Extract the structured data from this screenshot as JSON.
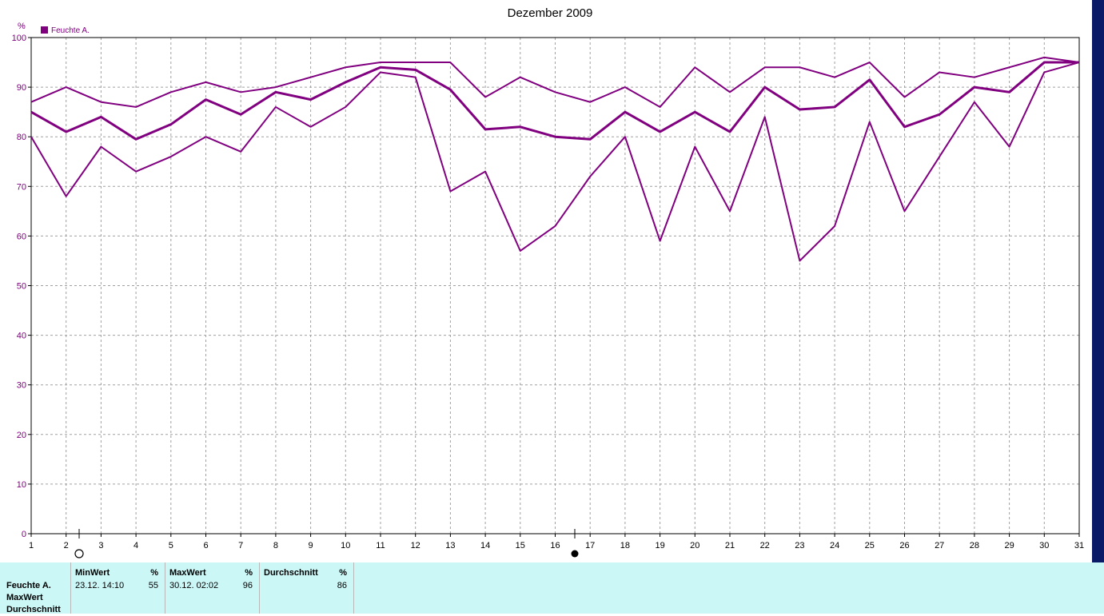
{
  "chart_data": {
    "type": "line",
    "title": "Dezember 2009",
    "ylabel": "%",
    "legend": {
      "entries": [
        "Feuchte A."
      ],
      "placement": "top-left"
    },
    "x": [
      1,
      2,
      3,
      4,
      5,
      6,
      7,
      8,
      9,
      10,
      11,
      12,
      13,
      14,
      15,
      16,
      17,
      18,
      19,
      20,
      21,
      22,
      23,
      24,
      25,
      26,
      27,
      28,
      29,
      30,
      31
    ],
    "xlim": [
      1,
      31
    ],
    "ylim": [
      0,
      100
    ],
    "yticks": [
      0,
      10,
      20,
      30,
      40,
      50,
      60,
      70,
      80,
      90,
      100
    ],
    "grid": true,
    "series": [
      {
        "role": "max",
        "values": [
          87,
          90,
          87,
          86,
          89,
          91,
          89,
          90,
          92,
          94,
          95,
          95,
          95,
          88,
          92,
          89,
          87,
          90,
          86,
          94,
          89,
          94,
          94,
          92,
          95,
          88,
          93,
          92,
          94,
          96,
          95
        ]
      },
      {
        "role": "avg",
        "values": [
          85,
          81,
          84,
          79.5,
          82.5,
          87.5,
          84.5,
          89,
          87.5,
          91,
          94,
          93.5,
          89.5,
          81.5,
          82,
          80,
          79.5,
          85,
          81,
          85,
          81,
          90,
          85.5,
          86,
          91.5,
          82,
          84.5,
          90,
          89,
          95,
          95
        ]
      },
      {
        "role": "min",
        "values": [
          80,
          68,
          78,
          73,
          76,
          80,
          77,
          86,
          82,
          86,
          93,
          92,
          69,
          73,
          57,
          62,
          72,
          80,
          59,
          78,
          65,
          84,
          55,
          62,
          83,
          65,
          76,
          87,
          78,
          93,
          95
        ]
      }
    ],
    "color": "#800080"
  },
  "stats": {
    "row_labels": [
      "Feuchte A.",
      "MaxWert",
      "Durchschnitt"
    ],
    "min": {
      "header": "MinWert",
      "unit": "%",
      "time": "23.12.  14:10",
      "value": "55"
    },
    "max": {
      "header": "MaxWert",
      "unit": "%",
      "time": "30.12.  02:02",
      "value": "96"
    },
    "avg": {
      "header": "Durchschnitt",
      "unit": "%",
      "value": "86"
    }
  },
  "colors": {
    "line": "#800080",
    "stats_background": "#ccf7f7",
    "grid": "#a0a0a0"
  },
  "icons": {
    "moon_markers": [
      "full-moon-icon",
      "new-moon-icon"
    ]
  }
}
